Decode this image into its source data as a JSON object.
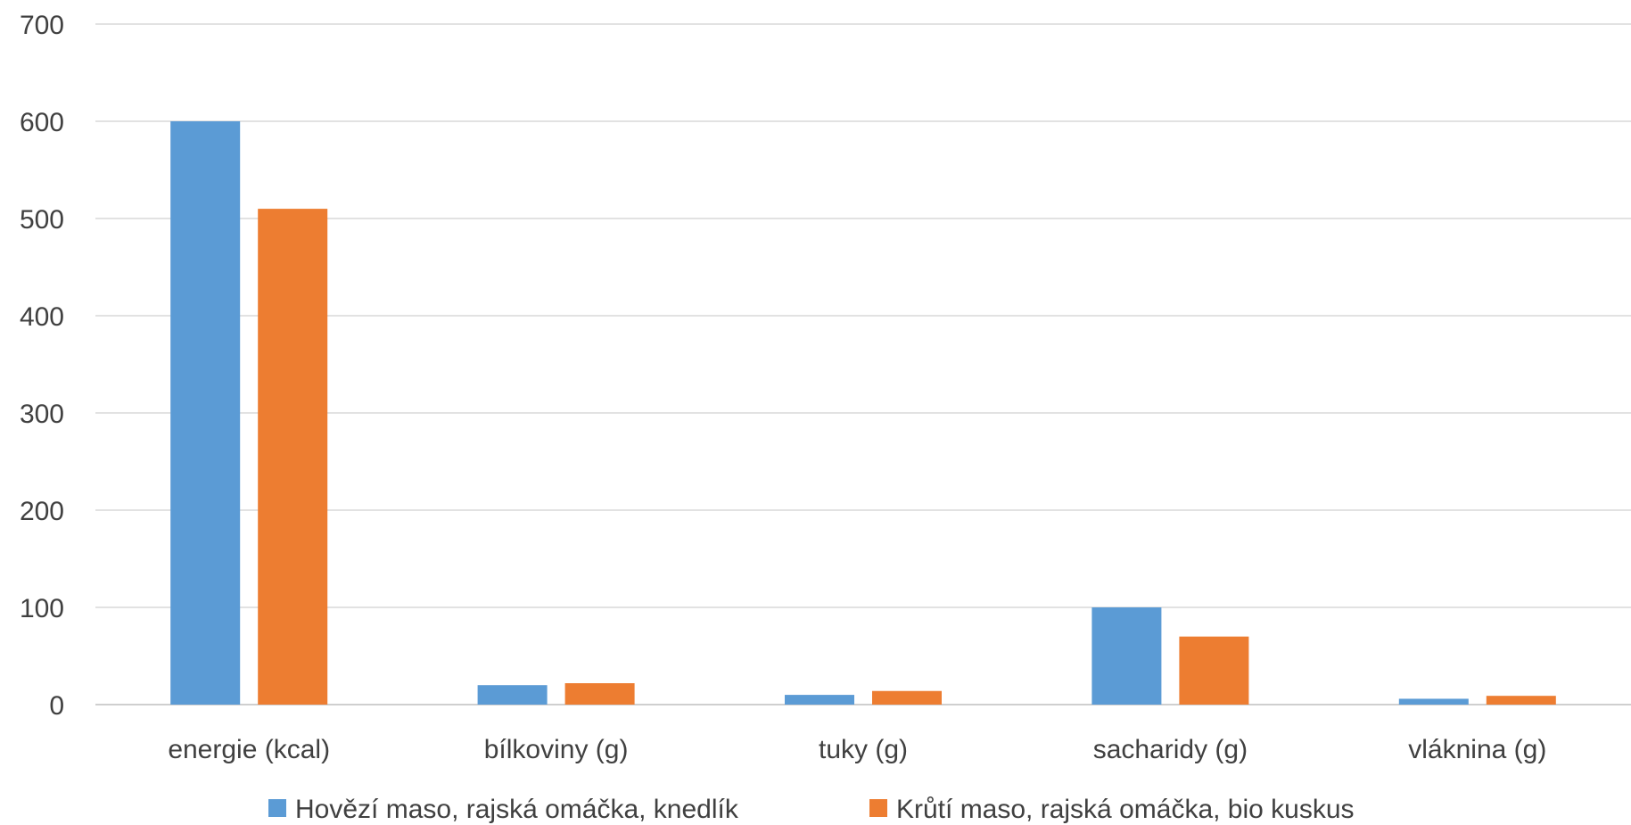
{
  "chart_data": {
    "type": "bar",
    "title": "",
    "xlabel": "",
    "ylabel": "",
    "ylim": [
      0,
      700
    ],
    "yticks": [
      0,
      100,
      200,
      300,
      400,
      500,
      600,
      700
    ],
    "grid": true,
    "legend_position": "bottom",
    "categories": [
      "energie (kcal)",
      "bílkoviny (g)",
      "tuky (g)",
      "sacharidy (g)",
      "vláknina (g)"
    ],
    "series": [
      {
        "name": "Hovězí maso, rajská omáčka, knedlík",
        "color": "#5b9bd5",
        "values": [
          600,
          20,
          10,
          100,
          6
        ]
      },
      {
        "name": "Krůtí maso, rajská omáčka, bio kuskus",
        "color": "#ed7d31",
        "values": [
          510,
          22,
          14,
          70,
          9
        ]
      }
    ]
  }
}
